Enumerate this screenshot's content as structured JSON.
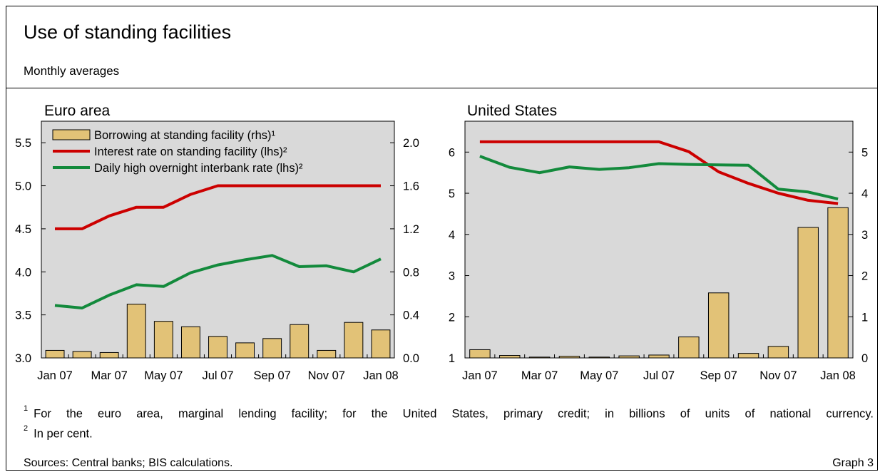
{
  "title": "Use of standing facilities",
  "subtitle": "Monthly averages",
  "legend": [
    {
      "label": "Borrowing at standing facility (rhs)¹",
      "color": "#e2c277",
      "kind": "bar"
    },
    {
      "label": "Interest rate on standing facility (lhs)²",
      "color": "#cc0000",
      "kind": "line"
    },
    {
      "label": "Daily high overnight interbank rate (lhs)²",
      "color": "#138a3c",
      "kind": "line"
    }
  ],
  "footnotes": [
    {
      "mark": "1",
      "text": "For the euro area, marginal lending facility; for the United States, primary credit; in billions of units of national currency."
    },
    {
      "mark": "2",
      "text": "In per cent."
    }
  ],
  "sources": "Sources: Central banks; BIS calculations.",
  "graph_label": "Graph 3",
  "colors": {
    "bar": "#e2c277",
    "red_line": "#cc0000",
    "green_line": "#138a3c",
    "plot_bg": "#d9d9d9"
  },
  "chart_data": [
    {
      "type": "bar+line",
      "title": "Euro area",
      "categories": [
        "Jan 07",
        "Feb 07",
        "Mar 07",
        "Apr 07",
        "May 07",
        "Jun 07",
        "Jul 07",
        "Aug 07",
        "Sep 07",
        "Oct 07",
        "Nov 07",
        "Dec 07",
        "Jan 08"
      ],
      "x_tick_labels": [
        "Jan 07",
        "Mar 07",
        "May 07",
        "Jul 07",
        "Sep 07",
        "Nov 07",
        "Jan 08"
      ],
      "ylim_left": [
        3.0,
        5.75
      ],
      "ylim_right": [
        0.0,
        2.2
      ],
      "yticks_left": [
        "3.0",
        "3.5",
        "4.0",
        "4.5",
        "5.0",
        "5.5"
      ],
      "yticks_right": [
        "0.0",
        "0.4",
        "0.8",
        "1.2",
        "1.6",
        "2.0"
      ],
      "series": [
        {
          "name": "Borrowing at standing facility (rhs)¹",
          "axis": "right",
          "kind": "bar",
          "values": [
            0.07,
            0.06,
            0.05,
            0.5,
            0.34,
            0.29,
            0.2,
            0.14,
            0.18,
            0.31,
            0.07,
            0.33,
            0.26
          ]
        },
        {
          "name": "Interest rate on standing facility (lhs)²",
          "axis": "left",
          "kind": "line",
          "color": "red",
          "values": [
            4.5,
            4.5,
            4.65,
            4.75,
            4.75,
            4.9,
            5.0,
            5.0,
            5.0,
            5.0,
            5.0,
            5.0,
            5.0
          ]
        },
        {
          "name": "Daily high overnight interbank rate (lhs)²",
          "axis": "left",
          "kind": "line",
          "color": "green",
          "values": [
            3.61,
            3.58,
            3.73,
            3.85,
            3.83,
            3.99,
            4.08,
            4.14,
            4.19,
            4.06,
            4.07,
            4.0,
            4.15
          ]
        }
      ]
    },
    {
      "type": "bar+line",
      "title": "United States",
      "categories": [
        "Jan 07",
        "Feb 07",
        "Mar 07",
        "Apr 07",
        "May 07",
        "Jun 07",
        "Jul 07",
        "Aug 07",
        "Sep 07",
        "Oct 07",
        "Nov 07",
        "Dec 07",
        "Jan 08"
      ],
      "x_tick_labels": [
        "Jan 07",
        "Mar 07",
        "May 07",
        "Jul 07",
        "Sep 07",
        "Nov 07",
        "Jan 08"
      ],
      "ylim_left": [
        1.0,
        6.75
      ],
      "ylim_right": [
        0.0,
        5.75
      ],
      "yticks_left": [
        "1",
        "2",
        "3",
        "4",
        "5",
        "6"
      ],
      "yticks_right": [
        "0",
        "1",
        "2",
        "3",
        "4",
        "5"
      ],
      "series": [
        {
          "name": "Borrowing at standing facility (rhs)¹",
          "axis": "right",
          "kind": "bar",
          "values": [
            0.2,
            0.06,
            0.02,
            0.04,
            0.02,
            0.05,
            0.07,
            0.51,
            1.58,
            0.11,
            0.28,
            3.17,
            3.65
          ]
        },
        {
          "name": "Interest rate on standing facility (lhs)²",
          "axis": "left",
          "kind": "line",
          "color": "red",
          "values": [
            6.25,
            6.25,
            6.25,
            6.25,
            6.25,
            6.25,
            6.25,
            6.01,
            5.52,
            5.24,
            5.0,
            4.83,
            4.75
          ]
        },
        {
          "name": "Daily high overnight interbank rate (lhs)²",
          "axis": "left",
          "kind": "line",
          "color": "green",
          "values": [
            5.9,
            5.63,
            5.5,
            5.64,
            5.58,
            5.62,
            5.72,
            5.7,
            5.69,
            5.68,
            5.1,
            5.03,
            4.86
          ]
        }
      ]
    }
  ]
}
